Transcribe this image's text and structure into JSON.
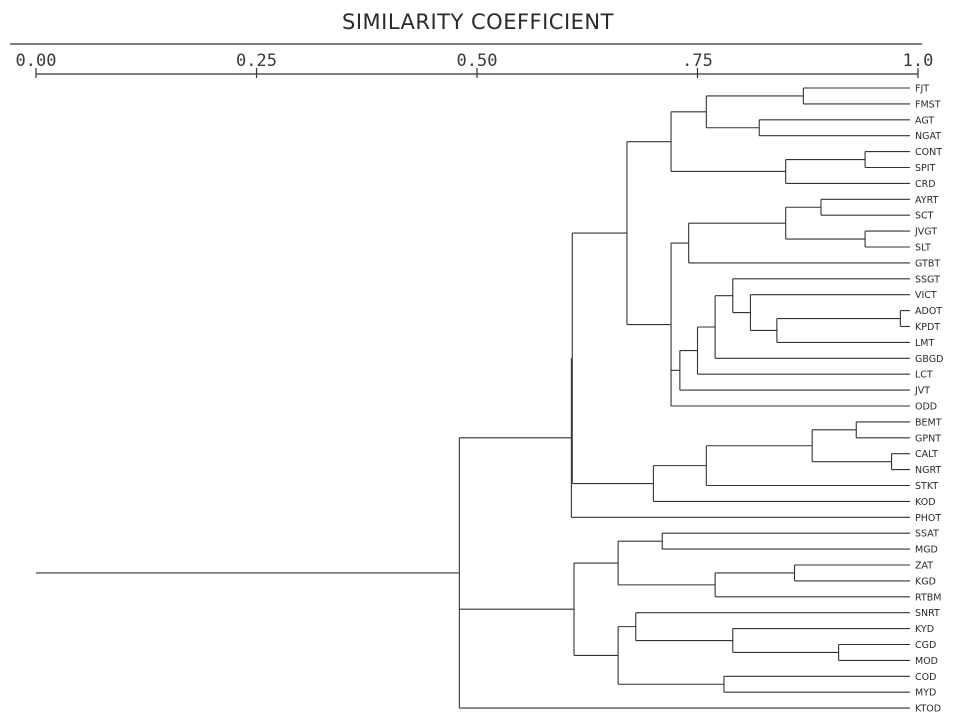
{
  "axis": {
    "title": "SIMILARITY COEFFICIENT",
    "ticks": [
      {
        "value": 0.0,
        "label": "0.00"
      },
      {
        "value": 0.25,
        "label": "0.25"
      },
      {
        "value": 0.5,
        "label": "0.50"
      },
      {
        "value": 0.75,
        "label": ".75"
      },
      {
        "value": 1.0,
        "label": "1.0"
      }
    ]
  },
  "leaves": [
    "FJT",
    "FMST",
    "AGT",
    "NGAT",
    "CONT",
    "SPIT",
    "CRD",
    "AYRT",
    "SCT",
    "JVGT",
    "SLT",
    "GTBT",
    "SSGT",
    "VICT",
    "ADOT",
    "KPDT",
    "LMT",
    "GBGD",
    "LCT",
    "JVT",
    "ODD",
    "BEMT",
    "GPNT",
    "CALT",
    "NGRT",
    "STKT",
    "KOD",
    "PHOT",
    "SSAT",
    "MGD",
    "ZAT",
    "KGD",
    "RTBM",
    "SNRT",
    "KYD",
    "CGD",
    "MOD",
    "COD",
    "MYD",
    "KTOD"
  ],
  "dendrogram": {
    "sim": 0.48,
    "children": [
      {
        "sim": 0.607,
        "children": [
          {
            "sim": 0.608,
            "children": [
              {
                "sim": 0.67,
                "children": [
                  {
                    "sim": 0.72,
                    "children": [
                      {
                        "sim": 0.76,
                        "children": [
                          {
                            "sim": 0.87,
                            "children": [
                              "FJT",
                              "FMST"
                            ]
                          },
                          {
                            "sim": 0.82,
                            "children": [
                              "AGT",
                              "NGAT"
                            ]
                          }
                        ]
                      },
                      {
                        "sim": 0.85,
                        "children": [
                          {
                            "sim": 0.94,
                            "children": [
                              "CONT",
                              "SPIT"
                            ]
                          },
                          "CRD"
                        ]
                      }
                    ]
                  },
                  {
                    "sim": 0.72,
                    "children": [
                      {
                        "sim": 0.74,
                        "children": [
                          {
                            "sim": 0.85,
                            "children": [
                              {
                                "sim": 0.89,
                                "children": [
                                  "AYRT",
                                  "SCT"
                                ]
                              },
                              {
                                "sim": 0.94,
                                "children": [
                                  "JVGT",
                                  "SLT"
                                ]
                              }
                            ]
                          },
                          "GTBT"
                        ]
                      },
                      {
                        "sim": 0.73,
                        "children": [
                          {
                            "sim": 0.75,
                            "children": [
                              {
                                "sim": 0.77,
                                "children": [
                                  {
                                    "sim": 0.79,
                                    "children": [
                                      "SSGT",
                                      {
                                        "sim": 0.81,
                                        "children": [
                                          "VICT",
                                          {
                                            "sim": 0.84,
                                            "children": [
                                              {
                                                "sim": 0.98,
                                                "children": [
                                                  "ADOT",
                                                  "KPDT"
                                                ]
                                              },
                                              "LMT"
                                            ]
                                          }
                                        ]
                                      }
                                    ]
                                  },
                                  "GBGD"
                                ]
                              },
                              "LCT"
                            ]
                          },
                          "JVT"
                        ]
                      },
                      "ODD"
                    ]
                  }
                ]
              },
              {
                "sim": 0.7,
                "children": [
                  {
                    "sim": 0.76,
                    "children": [
                      {
                        "sim": 0.88,
                        "children": [
                          {
                            "sim": 0.93,
                            "children": [
                              "BEMT",
                              "GPNT"
                            ]
                          },
                          {
                            "sim": 0.97,
                            "children": [
                              "CALT",
                              "NGRT"
                            ]
                          }
                        ]
                      },
                      "STKT"
                    ]
                  },
                  "KOD"
                ]
              }
            ]
          },
          "PHOT"
        ]
      },
      {
        "sim": 0.61,
        "children": [
          {
            "sim": 0.66,
            "children": [
              {
                "sim": 0.71,
                "children": [
                  "SSAT",
                  "MGD"
                ]
              },
              {
                "sim": 0.77,
                "children": [
                  {
                    "sim": 0.86,
                    "children": [
                      "ZAT",
                      "KGD"
                    ]
                  },
                  "RTBM"
                ]
              }
            ]
          },
          {
            "sim": 0.66,
            "children": [
              {
                "sim": 0.68,
                "children": [
                  "SNRT",
                  {
                    "sim": 0.79,
                    "children": [
                      "KYD",
                      {
                        "sim": 0.91,
                        "children": [
                          "CGD",
                          "MOD"
                        ]
                      }
                    ]
                  }
                ]
              },
              {
                "sim": 0.78,
                "children": [
                  "COD",
                  "MYD"
                ]
              }
            ]
          }
        ]
      },
      "KTOD"
    ]
  }
}
